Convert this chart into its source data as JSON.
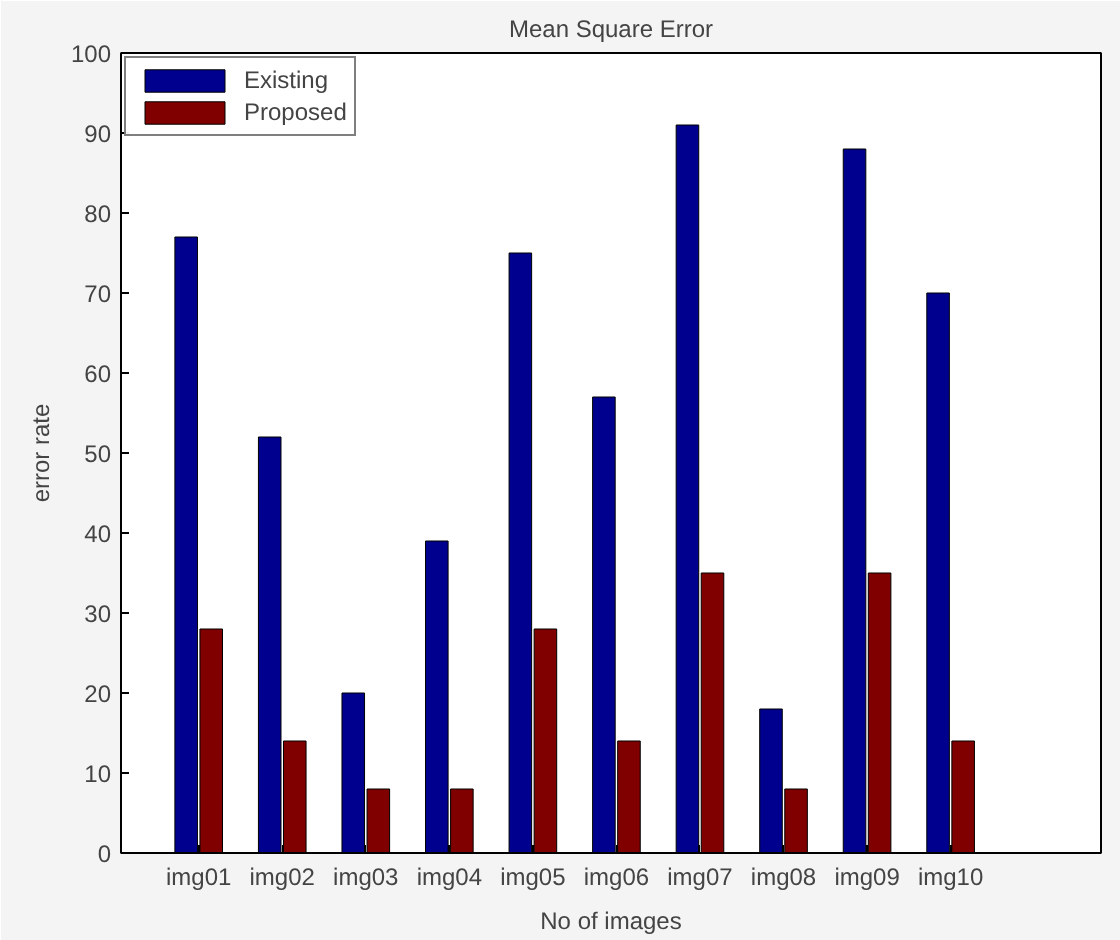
{
  "chart_data": {
    "type": "bar",
    "title": "Mean Square Error",
    "xlabel": "No of images",
    "ylabel": "error rate",
    "categories": [
      "img01",
      "img02",
      "img03",
      "img04",
      "img05",
      "img06",
      "img07",
      "img08",
      "img09",
      "img10"
    ],
    "series": [
      {
        "name": "Existing",
        "color": "#00008f",
        "values": [
          77,
          52,
          20,
          39,
          75,
          57,
          91,
          18,
          88,
          70
        ]
      },
      {
        "name": "Proposed",
        "color": "#800000",
        "values": [
          28,
          14,
          8,
          8,
          28,
          14,
          35,
          8,
          35,
          14
        ]
      }
    ],
    "ylim": [
      0,
      100
    ],
    "yticks": [
      0,
      10,
      20,
      30,
      40,
      50,
      60,
      70,
      80,
      90,
      100
    ],
    "grid": false,
    "legend": "top left"
  }
}
